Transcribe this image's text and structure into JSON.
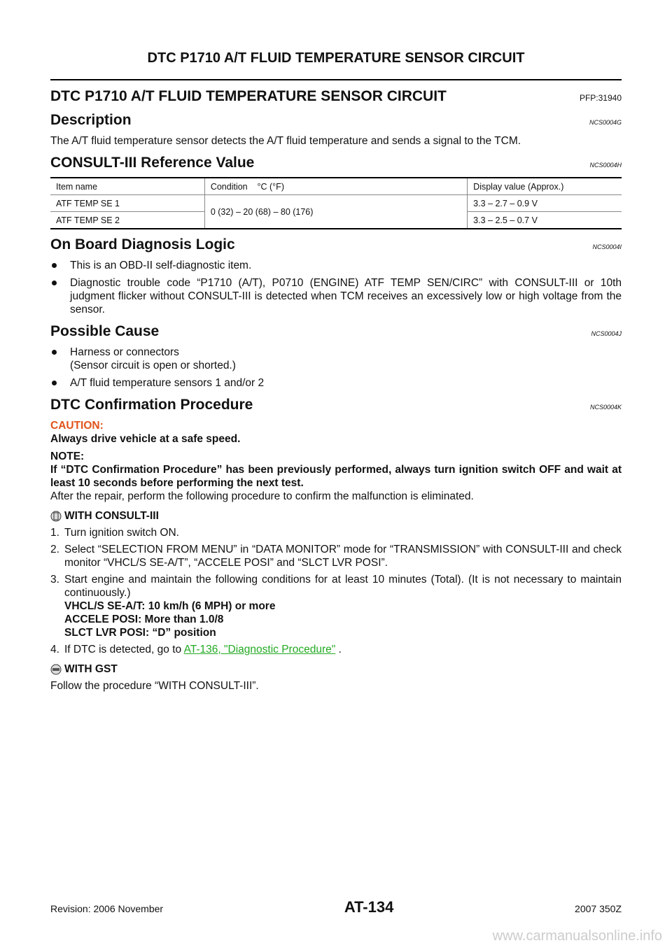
{
  "header": {
    "title": "DTC P1710 A/T FLUID TEMPERATURE SENSOR CIRCUIT"
  },
  "section": {
    "title": "DTC P1710 A/T FLUID TEMPERATURE SENSOR CIRCUIT",
    "code": "PFP:31940"
  },
  "description": {
    "heading": "Description",
    "code": "NCS0004G",
    "text": "The A/T fluid temperature sensor detects the A/T fluid temperature and sends a signal to the TCM."
  },
  "reference": {
    "heading": "CONSULT-III Reference Value",
    "code": "NCS0004H",
    "table": {
      "columns": [
        "Item name",
        "Condition    °C (°F)",
        "Display value (Approx.)"
      ],
      "condition": "0 (32) – 20 (68) – 80 (176)",
      "rows": [
        {
          "item": "ATF TEMP SE 1",
          "value": "3.3 – 2.7 – 0.9  V"
        },
        {
          "item": "ATF TEMP SE 2",
          "value": "3.3 – 2.5 – 0.7  V"
        }
      ]
    }
  },
  "obd": {
    "heading": "On Board Diagnosis Logic",
    "code": "NCS0004I",
    "bullets": [
      "This is an OBD-II self-diagnostic item.",
      "Diagnostic trouble code “P1710 (A/T), P0710 (ENGINE) ATF TEMP SEN/CIRC” with CONSULT-III or 10th judgment flicker without CONSULT-III is detected when TCM receives an excessively low or high voltage from the sensor."
    ]
  },
  "cause": {
    "heading": "Possible Cause",
    "code": "NCS0004J",
    "bullets": [
      "Harness or connectors\n(Sensor circuit is open or shorted.)",
      "A/T fluid temperature sensors 1 and/or 2"
    ]
  },
  "confirmation": {
    "heading": "DTC Confirmation Procedure",
    "code": "NCS0004K",
    "caution_label": "CAUTION:",
    "caution": "Always drive vehicle at a safe speed.",
    "note_label": "NOTE:",
    "note": "If “DTC Confirmation Procedure” has been previously performed, always turn ignition switch OFF and wait at least 10 seconds before performing the next test.",
    "after": "After the repair, perform the following procedure to confirm the malfunction is eliminated.",
    "consult_heading": "WITH CONSULT-III",
    "steps": [
      {
        "number": "1.",
        "text": "Turn ignition switch ON."
      },
      {
        "number": "2.",
        "text": "Select “SELECTION FROM MENU” in “DATA MONITOR” mode for “TRANSMISSION” with CONSULT-III and check monitor “VHCL/S SE-A/T”, “ACCELE POSI” and “SLCT LVR POSI”."
      },
      {
        "number": "3.",
        "text": "Start engine and maintain the following conditions for at least 10 minutes (Total). (It is not necessary to maintain continuously.)",
        "conditions": [
          "VHCL/S SE-A/T: 10 km/h (6 MPH) or more",
          "ACCELE POSI: More than 1.0/8",
          "SLCT LVR POSI: “D” position"
        ]
      },
      {
        "number": "4.",
        "text": "If DTC is detected, go to ",
        "link": "AT-136, \"Diagnostic Procedure\"",
        "end": " ."
      }
    ],
    "gst_heading": "WITH GST",
    "gst_text": "Follow the procedure “WITH CONSULT-III”."
  },
  "footer": {
    "revision": "Revision: 2006 November",
    "page": "AT-134",
    "model": "2007 350Z"
  },
  "watermark": "www.carmanualsonline.info"
}
